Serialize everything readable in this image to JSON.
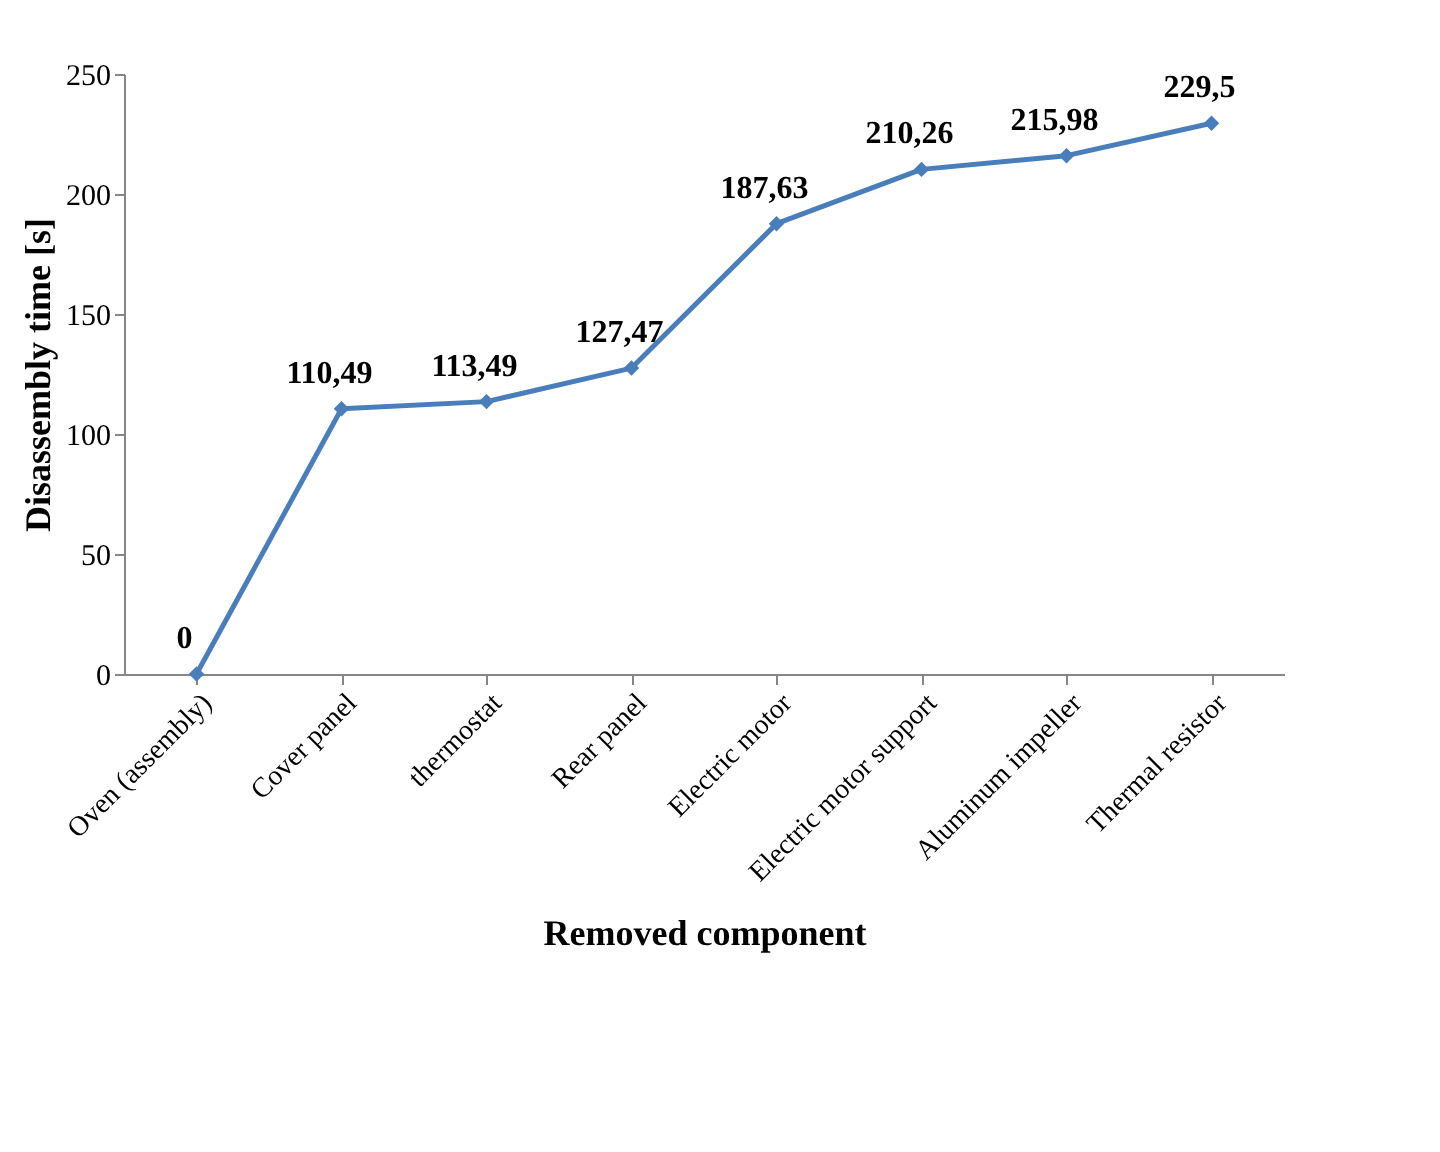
{
  "chart_data": {
    "type": "line",
    "xlabel": "Removed component",
    "ylabel": "Disassembly time [s]",
    "categories": [
      "Oven (assembly)",
      "Cover panel",
      "thermostat",
      "Rear panel",
      "Electric motor",
      "Electric motor support",
      "Aluminum impeller",
      "Thermal resistor"
    ],
    "series": [
      {
        "color": "#4a7ebb",
        "values": [
          0,
          110.49,
          113.49,
          127.47,
          187.63,
          210.26,
          215.98,
          229.5
        ],
        "value_labels": [
          "0",
          "110,49",
          "113,49",
          "127,47",
          "187,63",
          "210,26",
          "215,98",
          "229,5"
        ]
      }
    ],
    "ylim": [
      0,
      250
    ],
    "yticks": [
      0,
      50,
      100,
      150,
      200,
      250
    ],
    "marker": "diamond",
    "line_style": "solid"
  }
}
